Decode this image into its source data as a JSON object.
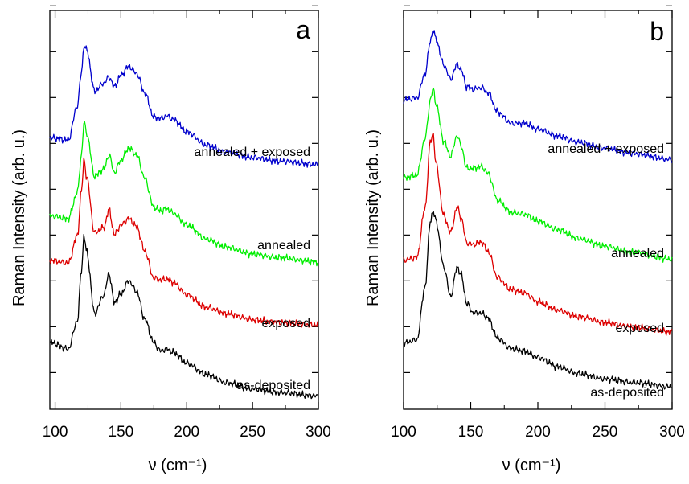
{
  "chart_data": [
    {
      "type": "line",
      "panel_label": "a",
      "xlabel": "ν (cm⁻¹)",
      "ylabel": "Raman Intensity (arb. u.)",
      "xlim": [
        96,
        300
      ],
      "xticks": [
        100,
        150,
        200,
        250,
        300
      ],
      "grid": false,
      "legend": "none; series labelled inline at right of each curve",
      "series": [
        {
          "name": "annealed + exposed",
          "color": "#0000cc",
          "x": [
            97,
            110,
            117,
            120,
            122,
            124,
            130,
            137,
            141,
            145,
            150,
            156,
            162,
            168,
            175,
            180,
            185,
            190,
            200,
            215,
            230,
            250,
            270,
            300
          ],
          "y": [
            2.91,
            2.89,
            3.28,
            3.65,
            3.96,
            3.9,
            3.44,
            3.53,
            3.6,
            3.49,
            3.62,
            3.72,
            3.64,
            3.42,
            3.15,
            3.13,
            3.16,
            3.12,
            2.98,
            2.83,
            2.75,
            2.69,
            2.65,
            2.61
          ]
        },
        {
          "name": "annealed",
          "color": "#00ee00",
          "x": [
            97,
            110,
            117,
            120,
            122,
            124,
            130,
            137,
            141,
            145,
            150,
            156,
            162,
            168,
            175,
            180,
            185,
            190,
            200,
            215,
            230,
            250,
            270,
            300
          ],
          "y": [
            2.03,
            2.0,
            2.3,
            2.72,
            3.09,
            2.96,
            2.48,
            2.56,
            2.72,
            2.52,
            2.66,
            2.8,
            2.72,
            2.46,
            2.13,
            2.09,
            2.11,
            2.06,
            1.93,
            1.77,
            1.68,
            1.6,
            1.56,
            1.51
          ]
        },
        {
          "name": "exposed",
          "color": "#dd0000",
          "x": [
            97,
            110,
            117,
            120,
            122,
            124,
            130,
            137,
            141,
            145,
            150,
            156,
            162,
            168,
            175,
            180,
            185,
            190,
            200,
            215,
            230,
            250,
            270,
            300
          ],
          "y": [
            1.53,
            1.5,
            1.81,
            2.31,
            2.67,
            2.46,
            1.84,
            1.9,
            2.1,
            1.82,
            1.93,
            2.0,
            1.91,
            1.64,
            1.33,
            1.31,
            1.32,
            1.28,
            1.14,
            1.0,
            0.93,
            0.86,
            0.83,
            0.8
          ]
        },
        {
          "name": "as-deposited",
          "color": "#000000",
          "x": [
            97,
            110,
            117,
            120,
            122,
            124,
            130,
            137,
            141,
            145,
            150,
            156,
            162,
            168,
            175,
            180,
            185,
            190,
            200,
            215,
            230,
            250,
            270,
            300
          ],
          "y": [
            0.6,
            0.53,
            0.85,
            1.42,
            1.81,
            1.62,
            0.93,
            1.14,
            1.38,
            1.05,
            1.15,
            1.3,
            1.18,
            0.87,
            0.6,
            0.51,
            0.53,
            0.49,
            0.37,
            0.24,
            0.15,
            0.08,
            0.04,
            0.0
          ]
        }
      ]
    },
    {
      "type": "line",
      "panel_label": "b",
      "xlabel": "ν (cm⁻¹)",
      "ylabel": "Raman Intensity (arb. u.)",
      "xlim": [
        100,
        300
      ],
      "xticks": [
        100,
        150,
        200,
        250,
        300
      ],
      "grid": false,
      "legend": "none; series labelled inline at right of each curve",
      "series": [
        {
          "name": "annealed + exposed",
          "color": "#0000cc",
          "x": [
            100,
            110,
            116,
            120,
            122,
            124,
            130,
            135,
            140,
            143,
            147,
            152,
            158,
            163,
            170,
            180,
            190,
            200,
            215,
            230,
            250,
            270,
            300
          ],
          "y": [
            3.32,
            3.34,
            3.62,
            4.0,
            4.13,
            4.02,
            3.72,
            3.56,
            3.73,
            3.66,
            3.47,
            3.44,
            3.46,
            3.4,
            3.18,
            3.05,
            3.05,
            2.98,
            2.9,
            2.83,
            2.76,
            2.7,
            2.63
          ]
        },
        {
          "name": "annealed",
          "color": "#00ee00",
          "x": [
            100,
            110,
            116,
            120,
            122,
            124,
            130,
            135,
            140,
            143,
            147,
            152,
            158,
            163,
            170,
            180,
            190,
            200,
            215,
            230,
            250,
            270,
            300
          ],
          "y": [
            2.42,
            2.45,
            2.87,
            3.32,
            3.45,
            3.28,
            2.84,
            2.67,
            2.91,
            2.78,
            2.53,
            2.53,
            2.55,
            2.47,
            2.16,
            2.02,
            2.0,
            1.92,
            1.82,
            1.72,
            1.63,
            1.56,
            1.48
          ]
        },
        {
          "name": "exposed",
          "color": "#dd0000",
          "x": [
            100,
            110,
            116,
            120,
            122,
            124,
            130,
            135,
            140,
            143,
            147,
            152,
            158,
            163,
            170,
            180,
            190,
            200,
            215,
            230,
            250,
            270,
            300
          ],
          "y": [
            1.47,
            1.5,
            2.07,
            2.84,
            2.93,
            2.59,
            1.98,
            1.79,
            2.08,
            1.95,
            1.67,
            1.65,
            1.68,
            1.57,
            1.27,
            1.13,
            1.09,
            0.99,
            0.89,
            0.82,
            0.75,
            0.7,
            0.64
          ]
        },
        {
          "name": "as-deposited",
          "color": "#000000",
          "x": [
            100,
            110,
            116,
            120,
            122,
            124,
            130,
            135,
            140,
            143,
            147,
            152,
            158,
            163,
            170,
            180,
            190,
            200,
            215,
            230,
            250,
            270,
            300
          ],
          "y": [
            0.51,
            0.55,
            1.16,
            1.93,
            2.03,
            1.93,
            1.39,
            1.05,
            1.39,
            1.3,
            0.97,
            0.86,
            0.86,
            0.8,
            0.57,
            0.45,
            0.42,
            0.35,
            0.24,
            0.16,
            0.1,
            0.06,
            0.01
          ]
        }
      ]
    }
  ]
}
